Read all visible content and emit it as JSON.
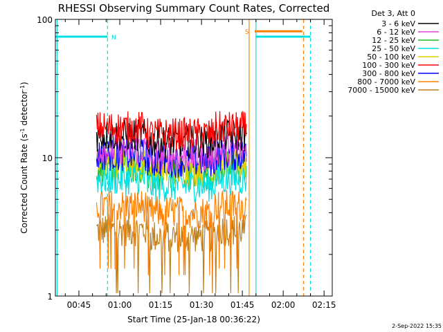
{
  "chart_data": {
    "type": "line",
    "title": "RHESSI Observing Summary Count Rates, Corrected",
    "xlabel": "Start Time (25-Jan-18 00:36:22)",
    "ylabel_main": "Corrected Count Rate (s",
    "ylabel_exp1": "-1",
    "ylabel_mid": " detector",
    "ylabel_exp2": "-1",
    "ylabel_end": ")",
    "y_scale": "log",
    "ylim": [
      1,
      100
    ],
    "xlim_minutes": [
      36.37,
      138.0
    ],
    "x_ticks": [
      {
        "label": "00:45",
        "minute": 45
      },
      {
        "label": "01:00",
        "minute": 60
      },
      {
        "label": "01:15",
        "minute": 75
      },
      {
        "label": "01:30",
        "minute": 90
      },
      {
        "label": "01:45",
        "minute": 105
      },
      {
        "label": "02:00",
        "minute": 120
      },
      {
        "label": "02:15",
        "minute": 135
      }
    ],
    "y_ticks": [
      {
        "label": "100",
        "value": 100
      },
      {
        "label": "10",
        "value": 10
      },
      {
        "label": "1",
        "value": 1
      }
    ],
    "legend_header": "Det 3, Att 0",
    "legend_position": "top-right, outside plot",
    "series": [
      {
        "name": "3 - 6 keV",
        "color": "#000000",
        "level": 14.5
      },
      {
        "name": "6 - 12 keV",
        "color": "#e040e0",
        "level": 11.5
      },
      {
        "name": "12 - 25 keV",
        "color": "#20c020",
        "level": 8.5
      },
      {
        "name": "25 - 50 keV",
        "color": "#00e0e0",
        "level": 7.0
      },
      {
        "name": "50 - 100 keV",
        "color": "#e0d000",
        "level": 9.0
      },
      {
        "name": "100 - 300 keV",
        "color": "#ff0000",
        "level": 16.5
      },
      {
        "name": "300 - 800 keV",
        "color": "#0000ff",
        "level": 10.5
      },
      {
        "name": "800 - 7000 keV",
        "color": "#ff8000",
        "level": 4.5
      },
      {
        "name": "7000 - 15000 keV",
        "color": "#c08020",
        "level": 3.0
      }
    ],
    "data_interval_minutes": [
      51.5,
      106.5
    ],
    "markers": [
      {
        "label": "N",
        "color": "#00e0e0",
        "start": 36.37,
        "end": 55.5,
        "level": 75
      },
      {
        "label": "S",
        "color": "#ff8000",
        "start": 109.5,
        "end": 127.0,
        "level": 82
      }
    ],
    "vlines": [
      {
        "minute": 37.0,
        "color": "#00e0e0",
        "style": "solid"
      },
      {
        "minute": 55.5,
        "color": "#00e0e0",
        "style": "dashed"
      },
      {
        "minute": 107.5,
        "color": "#ff8000",
        "style": "solid"
      },
      {
        "minute": 110.0,
        "color": "#00e0e0",
        "style": "solid"
      },
      {
        "minute": 127.5,
        "color": "#ff8000",
        "style": "dashed"
      },
      {
        "minute": 130.0,
        "color": "#00e0e0",
        "style": "dashed"
      }
    ],
    "cyan_line_right": {
      "start": 110.0,
      "end": 130.0,
      "level": 75
    },
    "footer_date": "2-Sep-2022 15:35"
  }
}
